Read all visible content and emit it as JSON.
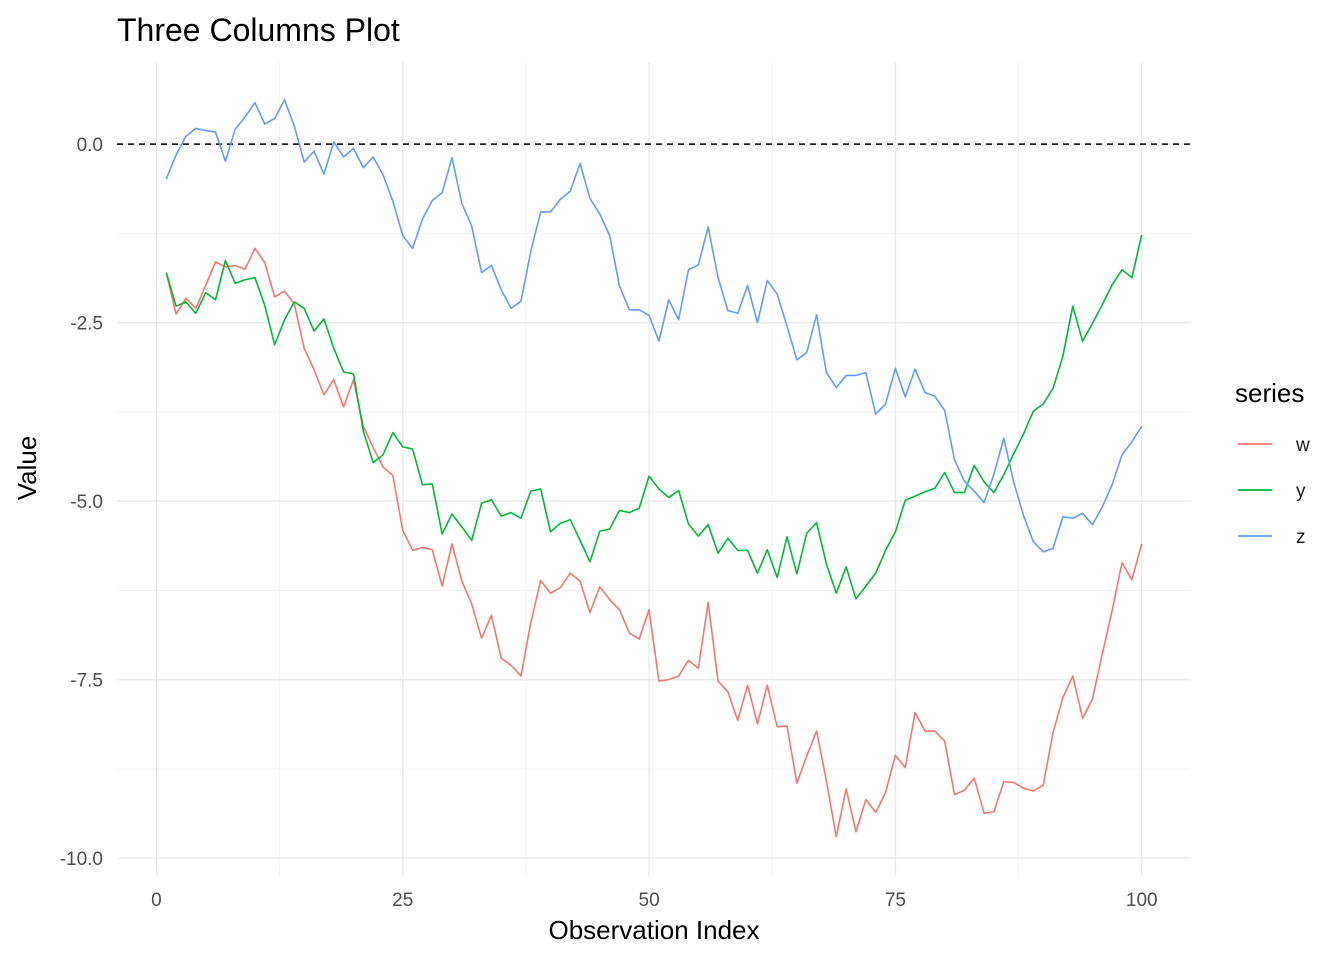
{
  "chart_data": {
    "type": "line",
    "title": "Three Columns Plot",
    "xlabel": "Observation Index",
    "ylabel": "Value",
    "xlim": [
      -4,
      105
    ],
    "ylim": [
      -10.25,
      1.15
    ],
    "x_ticks": [
      0,
      25,
      50,
      75,
      100
    ],
    "x_tick_labels": [
      "0",
      "25",
      "50",
      "75",
      "100"
    ],
    "y_ticks": [
      0,
      -2.5,
      -5,
      -7.5,
      -10
    ],
    "y_tick_labels": [
      "0.0",
      "-2.5",
      "-5.0",
      "-7.5",
      "-10.0"
    ],
    "grid": true,
    "reference_line": {
      "y": 0,
      "style": "dashed",
      "color": "#000000"
    },
    "legend": {
      "title": "series",
      "position": "right"
    },
    "x": [
      1,
      2,
      3,
      4,
      5,
      6,
      7,
      8,
      9,
      10,
      11,
      12,
      13,
      14,
      15,
      16,
      17,
      18,
      19,
      20,
      21,
      22,
      23,
      24,
      25,
      26,
      27,
      28,
      29,
      30,
      31,
      32,
      33,
      34,
      35,
      36,
      37,
      38,
      39,
      40,
      41,
      42,
      43,
      44,
      45,
      46,
      47,
      48,
      49,
      50,
      51,
      52,
      53,
      54,
      55,
      56,
      57,
      58,
      59,
      60,
      61,
      62,
      63,
      64,
      65,
      66,
      67,
      68,
      69,
      70,
      71,
      72,
      73,
      74,
      75,
      76,
      77,
      78,
      79,
      80,
      81,
      82,
      83,
      84,
      85,
      86,
      87,
      88,
      89,
      90,
      91,
      92,
      93,
      94,
      95,
      96,
      97,
      98,
      99,
      100
    ],
    "series": [
      {
        "name": "w",
        "color": "#F8766D",
        "values": [
          -1.8,
          -2.38,
          -2.16,
          -2.3,
          -1.98,
          -1.65,
          -1.72,
          -1.7,
          -1.75,
          -1.46,
          -1.66,
          -2.14,
          -2.06,
          -2.24,
          -2.86,
          -3.16,
          -3.51,
          -3.3,
          -3.68,
          -3.3,
          -3.95,
          -4.25,
          -4.52,
          -4.64,
          -5.41,
          -5.69,
          -5.65,
          -5.68,
          -6.19,
          -5.6,
          -6.12,
          -6.44,
          -6.92,
          -6.6,
          -7.2,
          -7.3,
          -7.45,
          -6.7,
          -6.11,
          -6.29,
          -6.21,
          -6.01,
          -6.12,
          -6.56,
          -6.2,
          -6.38,
          -6.52,
          -6.85,
          -6.93,
          -6.52,
          -7.52,
          -7.5,
          -7.45,
          -7.23,
          -7.34,
          -6.42,
          -7.52,
          -7.67,
          -8.07,
          -7.58,
          -8.12,
          -7.58,
          -8.16,
          -8.15,
          -8.95,
          -8.57,
          -8.22,
          -8.92,
          -9.7,
          -9.03,
          -9.63,
          -9.18,
          -9.36,
          -9.08,
          -8.56,
          -8.73,
          -7.96,
          -8.22,
          -8.22,
          -8.36,
          -9.11,
          -9.05,
          -8.88,
          -9.37,
          -9.35,
          -8.93,
          -8.94,
          -9.02,
          -9.06,
          -8.98,
          -8.24,
          -7.75,
          -7.45,
          -8.04,
          -7.77,
          -7.14,
          -6.53,
          -5.86,
          -6.1,
          -5.6
        ]
      },
      {
        "name": "y",
        "color": "#00BA38",
        "values": [
          -1.8,
          -2.27,
          -2.21,
          -2.37,
          -2.08,
          -2.18,
          -1.63,
          -1.95,
          -1.9,
          -1.87,
          -2.26,
          -2.81,
          -2.46,
          -2.21,
          -2.3,
          -2.62,
          -2.45,
          -2.86,
          -3.19,
          -3.22,
          -4.02,
          -4.46,
          -4.35,
          -4.04,
          -4.24,
          -4.27,
          -4.77,
          -4.76,
          -5.46,
          -5.18,
          -5.36,
          -5.55,
          -5.03,
          -4.98,
          -5.21,
          -5.16,
          -5.24,
          -4.86,
          -4.83,
          -5.43,
          -5.31,
          -5.26,
          -5.55,
          -5.85,
          -5.42,
          -5.39,
          -5.13,
          -5.16,
          -5.1,
          -4.65,
          -4.83,
          -4.95,
          -4.85,
          -5.32,
          -5.49,
          -5.33,
          -5.73,
          -5.52,
          -5.69,
          -5.69,
          -6.01,
          -5.68,
          -6.07,
          -5.5,
          -6.02,
          -5.45,
          -5.3,
          -5.88,
          -6.29,
          -5.92,
          -6.37,
          -6.19,
          -6.01,
          -5.69,
          -5.43,
          -4.99,
          -4.93,
          -4.87,
          -4.82,
          -4.6,
          -4.88,
          -4.88,
          -4.5,
          -4.73,
          -4.88,
          -4.63,
          -4.34,
          -4.06,
          -3.74,
          -3.64,
          -3.42,
          -2.97,
          -2.27,
          -2.76,
          -2.51,
          -2.25,
          -1.97,
          -1.76,
          -1.87,
          -1.27
        ]
      },
      {
        "name": "z",
        "color": "#619CFF",
        "values": [
          -0.49,
          -0.15,
          0.11,
          0.22,
          0.19,
          0.17,
          -0.24,
          0.21,
          0.38,
          0.58,
          0.28,
          0.36,
          0.62,
          0.25,
          -0.25,
          -0.1,
          -0.42,
          0.03,
          -0.18,
          -0.06,
          -0.33,
          -0.18,
          -0.43,
          -0.8,
          -1.28,
          -1.46,
          -1.05,
          -0.79,
          -0.68,
          -0.19,
          -0.83,
          -1.15,
          -1.8,
          -1.7,
          -2.04,
          -2.3,
          -2.2,
          -1.5,
          -0.95,
          -0.95,
          -0.77,
          -0.66,
          -0.27,
          -0.76,
          -0.98,
          -1.28,
          -1.99,
          -2.32,
          -2.32,
          -2.4,
          -2.76,
          -2.18,
          -2.46,
          -1.76,
          -1.69,
          -1.16,
          -1.87,
          -2.33,
          -2.37,
          -1.98,
          -2.5,
          -1.91,
          -2.1,
          -2.55,
          -3.02,
          -2.92,
          -2.39,
          -3.2,
          -3.41,
          -3.24,
          -3.24,
          -3.2,
          -3.78,
          -3.64,
          -3.14,
          -3.54,
          -3.15,
          -3.48,
          -3.53,
          -3.73,
          -4.42,
          -4.72,
          -4.86,
          -5.02,
          -4.62,
          -4.12,
          -4.73,
          -5.2,
          -5.57,
          -5.71,
          -5.66,
          -5.22,
          -5.24,
          -5.17,
          -5.33,
          -5.08,
          -4.77,
          -4.35,
          -4.17,
          -3.95
        ]
      }
    ]
  }
}
